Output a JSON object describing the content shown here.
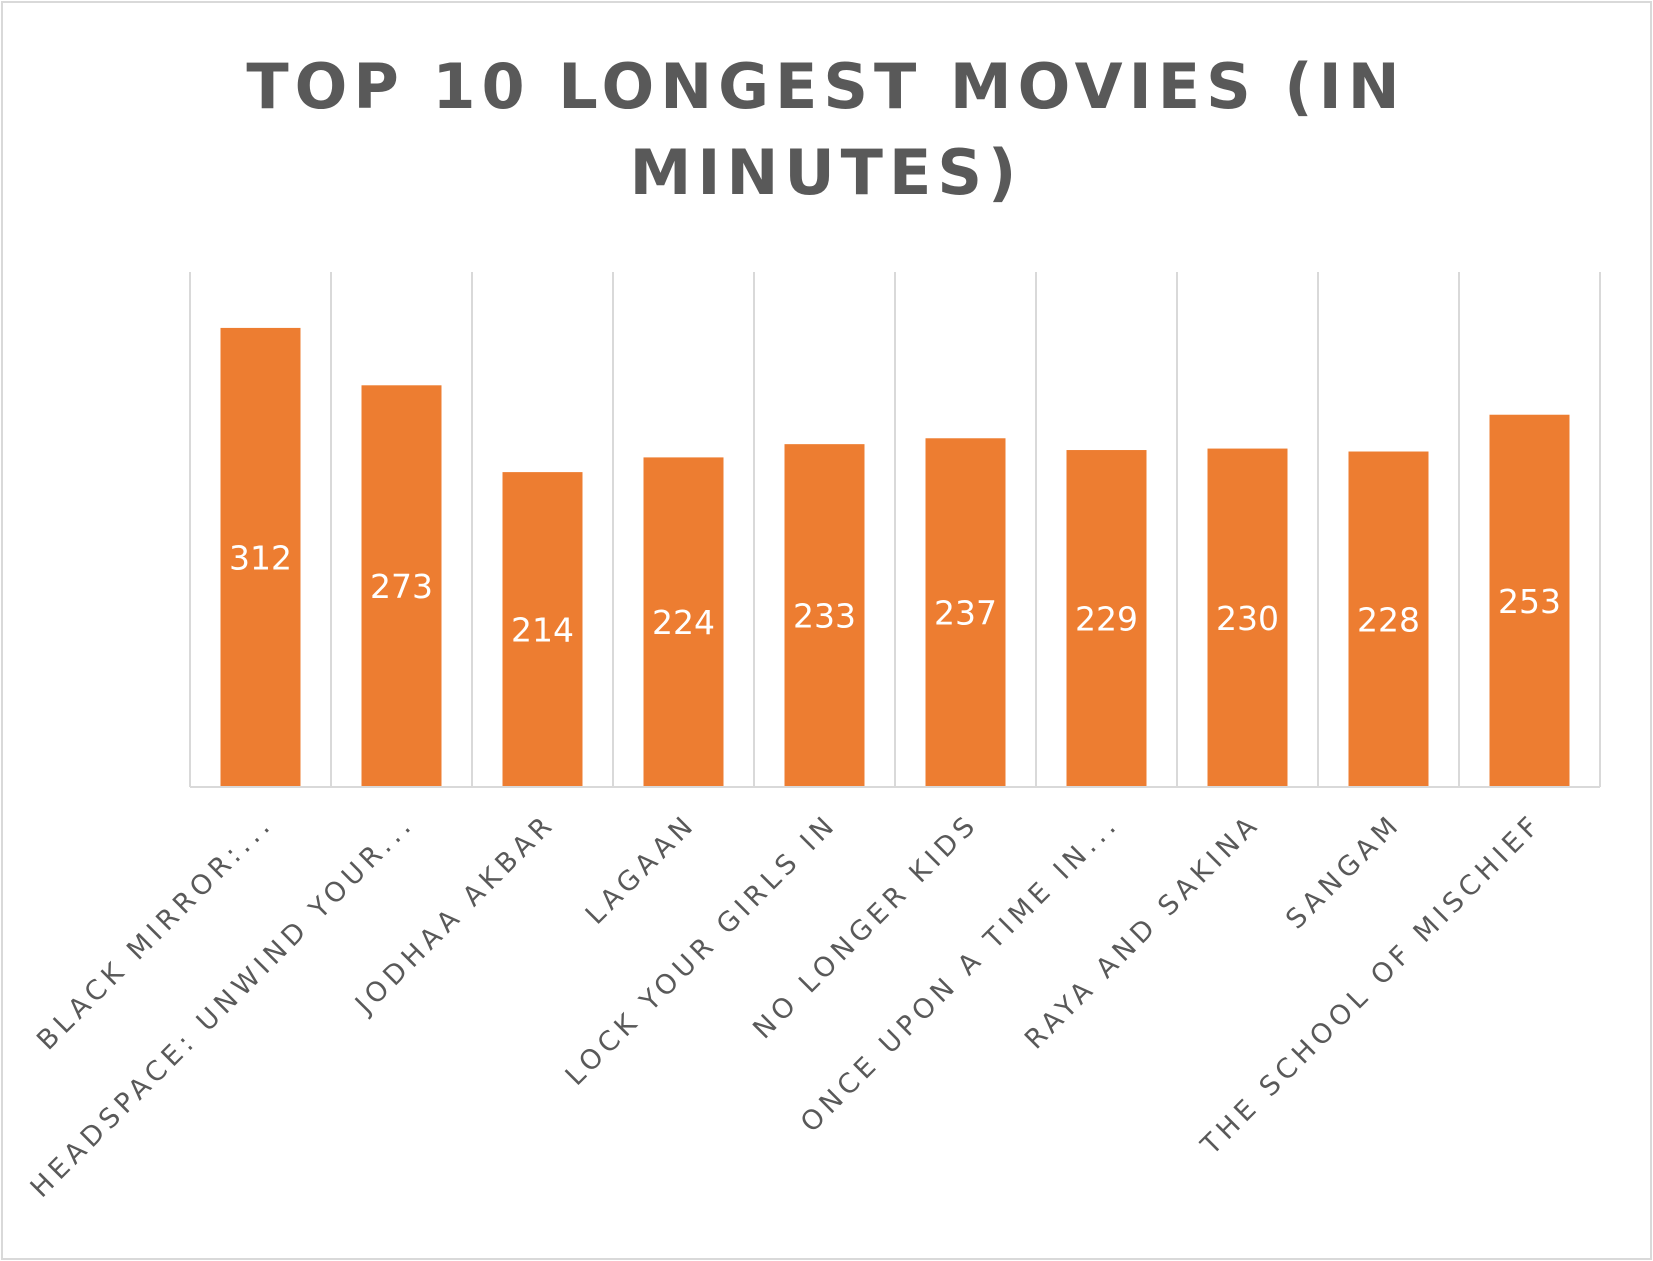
{
  "chart_data": {
    "type": "bar",
    "title_lines": [
      "TOP 10 LONGEST MOVIES (IN",
      "MINUTES)"
    ],
    "categories": [
      "BLACK MIRROR:...",
      "HEADSPACE: UNWIND YOUR...",
      "JODHAA AKBAR",
      "LAGAAN",
      "LOCK YOUR GIRLS IN",
      "NO LONGER KIDS",
      "ONCE UPON A TIME IN...",
      "RAYA AND SAKINA",
      "SANGAM",
      "THE SCHOOL OF MISCHIEF"
    ],
    "values": [
      312,
      273,
      214,
      224,
      233,
      237,
      229,
      230,
      228,
      253
    ],
    "data_labels": [
      "312",
      "273",
      "214",
      "224",
      "233",
      "237",
      "229",
      "230",
      "228",
      "253"
    ],
    "ylim": [
      0,
      350
    ],
    "grid": "vertical",
    "legend": "none",
    "colors": {
      "bar": "#ed7d31",
      "title": "#595959",
      "labels": "#595959",
      "grid": "#d9d9d9",
      "data_label": "#ffffff"
    }
  }
}
